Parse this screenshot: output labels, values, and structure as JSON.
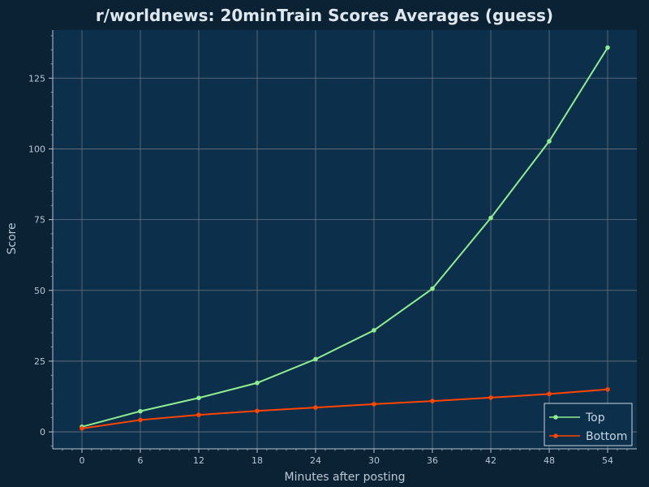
{
  "chart_data": {
    "type": "line",
    "title": "r/worldnews: 20minTrain Scores Averages (guess)",
    "xlabel": "Minutes after posting",
    "ylabel": "Score",
    "x": [
      0,
      6,
      12,
      18,
      24,
      30,
      36,
      42,
      48,
      54
    ],
    "xticks": [
      0,
      6,
      12,
      18,
      24,
      30,
      36,
      42,
      48,
      54
    ],
    "yticks": [
      0,
      25,
      50,
      75,
      100,
      125
    ],
    "xlim": [
      -3,
      57
    ],
    "ylim": [
      -6,
      142
    ],
    "grid": true,
    "legend": "bottom-right",
    "series": [
      {
        "name": "Top",
        "color": "#90ee90",
        "values": [
          1.8,
          7.3,
          12,
          17.3,
          25.7,
          35.9,
          50.6,
          75.6,
          102.7,
          135.8
        ]
      },
      {
        "name": "Bottom",
        "color": "#ff4500",
        "values": [
          1.2,
          4.2,
          6,
          7.4,
          8.6,
          9.8,
          10.9,
          12.1,
          13.4,
          15
        ]
      }
    ]
  },
  "colors": {
    "page_background": "#0b2235",
    "plot_background": "#0c2f4c",
    "grid": "#6b7480",
    "text": "#b8c7d4"
  }
}
